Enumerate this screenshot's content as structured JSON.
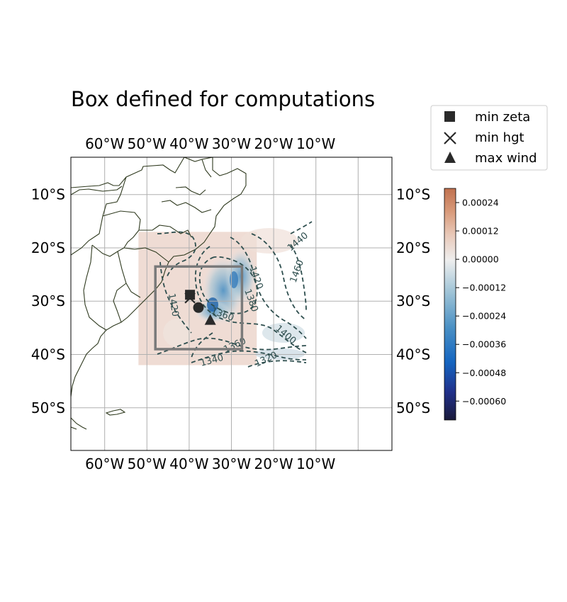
{
  "title": "Box defined for computations",
  "map": {
    "lon_range": [
      -68,
      8
    ],
    "lat_range": [
      -3,
      -58
    ],
    "gridlines": true,
    "lon_ticks": [
      {
        "lon": -60,
        "label": "60°W"
      },
      {
        "lon": -50,
        "label": "50°W"
      },
      {
        "lon": -40,
        "label": "40°W"
      },
      {
        "lon": -30,
        "label": "30°W"
      },
      {
        "lon": -20,
        "label": "20°W"
      },
      {
        "lon": -10,
        "label": "10°W"
      }
    ],
    "lat_ticks": [
      {
        "lat": -10,
        "label": "10°S"
      },
      {
        "lat": -20,
        "label": "20°S"
      },
      {
        "lat": -30,
        "label": "30°S"
      },
      {
        "lat": -40,
        "label": "40°S"
      },
      {
        "lat": -50,
        "label": "50°S"
      }
    ],
    "field_extent": {
      "lon": [
        -52,
        -24
      ],
      "lat": [
        -17,
        -42
      ]
    },
    "computation_box": {
      "lon": [
        -48,
        -27.5
      ],
      "lat": [
        -23.5,
        -39
      ]
    },
    "contour_labels": [
      "1440",
      "1460",
      "1420",
      "1380",
      "1360",
      "1420",
      "1400",
      "1360",
      "1340",
      "1320"
    ],
    "markers": {
      "min_zeta": {
        "lon": -39.8,
        "lat": -28.8
      },
      "min_hgt": {
        "lon": -39.8,
        "lat": -29.4
      },
      "max_wind": {
        "lon": -35,
        "lat": -33.5
      },
      "center": {
        "lon": -37.8,
        "lat": -31.2
      }
    }
  },
  "legend": [
    {
      "label": "min zeta",
      "symbol": "square"
    },
    {
      "label": "min hgt",
      "symbol": "x"
    },
    {
      "label": "max wind",
      "symbol": "triangle"
    }
  ],
  "colorbar": {
    "range": [
      -0.00068,
      0.0003
    ],
    "ticks": [
      "0.00024",
      "0.00012",
      "0.00000",
      "−0.00012",
      "−0.00024",
      "−0.00036",
      "−0.00048",
      "−0.00060"
    ],
    "tick_values": [
      0.00024,
      0.00012,
      0.0,
      -0.00012,
      -0.00024,
      -0.00036,
      -0.00048,
      -0.0006
    ],
    "colormap": [
      "#1a1a3a",
      "#20308a",
      "#1565c0",
      "#4a90c4",
      "#9ec3d6",
      "#eeeeee",
      "#e8c8b8",
      "#d89a7a",
      "#c0714f"
    ]
  },
  "colors": {
    "coast": "#2f3a1f",
    "contour": "#2f4f4f",
    "box": "#7a7a7a",
    "marker": "#2a2a2a",
    "grid": "#b0b0b0"
  }
}
